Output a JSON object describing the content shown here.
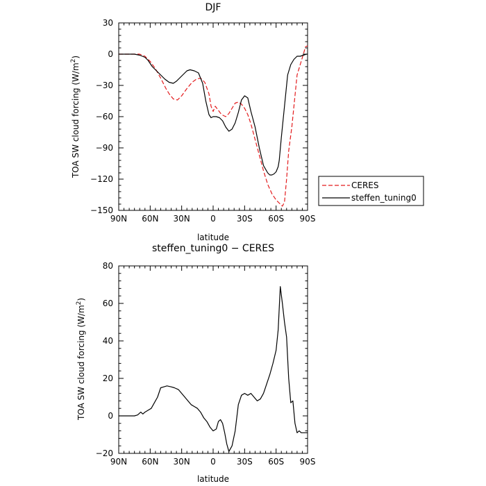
{
  "chart_data": [
    {
      "type": "line",
      "title": "DJF",
      "xlabel": "latitude",
      "ylabel_main": "TOA SW cloud forcing (W/m",
      "ylabel_sup": "2",
      "ylabel_close": ")",
      "xlim": [
        -90,
        90
      ],
      "ylim": [
        -150,
        30
      ],
      "x_ticks": [
        -90,
        -60,
        -30,
        0,
        30,
        60,
        90
      ],
      "x_tick_labels": [
        "90N",
        "60N",
        "30N",
        "0",
        "30S",
        "60S",
        "90S"
      ],
      "y_ticks": [
        -150,
        -120,
        -90,
        -60,
        -30,
        0,
        30
      ],
      "y_tick_labels": [
        "−150",
        "−120",
        "−90",
        "−60",
        "−30",
        "0",
        "30"
      ],
      "legend_position": "right",
      "series": [
        {
          "name": "CERES",
          "color": "#e31a1c",
          "dash": "dashed",
          "x": [
            -90,
            -85,
            -80,
            -75,
            -70,
            -65,
            -60,
            -55,
            -50,
            -45,
            -42,
            -38,
            -34,
            -30,
            -25,
            -20,
            -16,
            -12,
            -8,
            -4,
            -2,
            0,
            2,
            5,
            8,
            12,
            15,
            18,
            21,
            24,
            27,
            30,
            33,
            36,
            40,
            44,
            48,
            52,
            56,
            60,
            63,
            65,
            66,
            68,
            70,
            72,
            75,
            78,
            80,
            83,
            86,
            88,
            90
          ],
          "y": [
            0,
            0,
            0,
            0,
            0,
            -2,
            -7,
            -14,
            -23,
            -33,
            -38,
            -43,
            -44,
            -40,
            -33,
            -27,
            -24,
            -23,
            -27,
            -38,
            -50,
            -55,
            -50,
            -54,
            -58,
            -60,
            -57,
            -52,
            -47,
            -46,
            -48,
            -52,
            -58,
            -67,
            -82,
            -97,
            -112,
            -125,
            -134,
            -140,
            -143,
            -145,
            -146,
            -142,
            -120,
            -93,
            -70,
            -40,
            -20,
            -10,
            0,
            7,
            8
          ]
        },
        {
          "name": "steffen_tuning0",
          "color": "#000000",
          "dash": "solid",
          "x": [
            -90,
            -85,
            -80,
            -75,
            -70,
            -65,
            -62,
            -58,
            -54,
            -50,
            -46,
            -42,
            -38,
            -35,
            -32,
            -28,
            -25,
            -22,
            -18,
            -14,
            -10,
            -7,
            -4,
            -2,
            0,
            3,
            6,
            9,
            12,
            15,
            18,
            21,
            24,
            27,
            30,
            33,
            36,
            40,
            44,
            48,
            52,
            54,
            56,
            58,
            60,
            62,
            63,
            65,
            68,
            71,
            74,
            77,
            80,
            83,
            86,
            89,
            90
          ],
          "y": [
            0,
            0,
            0,
            0,
            -1,
            -3,
            -6,
            -12,
            -16,
            -20,
            -24,
            -27,
            -28,
            -26,
            -23,
            -19,
            -16,
            -15,
            -16,
            -18,
            -28,
            -45,
            -58,
            -61,
            -60,
            -60,
            -61,
            -64,
            -70,
            -74,
            -72,
            -66,
            -56,
            -44,
            -40,
            -42,
            -55,
            -70,
            -90,
            -107,
            -114,
            -116,
            -116,
            -115,
            -113,
            -108,
            -102,
            -80,
            -50,
            -20,
            -10,
            -5,
            -2,
            -2,
            -1,
            0,
            0
          ]
        }
      ]
    },
    {
      "type": "line",
      "title": "steffen_tuning0 − CERES",
      "xlabel": "latitude",
      "ylabel_main": "TOA SW cloud forcing (W/m",
      "ylabel_sup": "2",
      "ylabel_close": ")",
      "xlim": [
        -90,
        90
      ],
      "ylim": [
        -20,
        80
      ],
      "x_ticks": [
        -90,
        -60,
        -30,
        0,
        30,
        60,
        90
      ],
      "x_tick_labels": [
        "90N",
        "60N",
        "30N",
        "0",
        "30S",
        "60S",
        "90S"
      ],
      "y_ticks": [
        -20,
        0,
        20,
        40,
        60,
        80
      ],
      "y_tick_labels": [
        "−20",
        "0",
        "20",
        "40",
        "60",
        "80"
      ],
      "series": [
        {
          "name": "",
          "color": "#000000",
          "dash": "solid",
          "x": [
            -90,
            -85,
            -80,
            -75,
            -72,
            -69,
            -67,
            -65,
            -62,
            -59,
            -56,
            -53,
            -50,
            -47,
            -44,
            -40,
            -37,
            -33,
            -30,
            -27,
            -24,
            -21,
            -18,
            -15,
            -12,
            -9,
            -6,
            -3,
            0,
            3,
            5,
            7,
            9,
            11,
            13,
            15,
            18,
            21,
            24,
            27,
            30,
            33,
            36,
            39,
            42,
            45,
            48,
            51,
            54,
            57,
            60,
            62,
            64,
            66,
            68,
            70,
            72,
            74,
            76,
            78,
            80,
            82,
            84,
            86,
            88,
            90
          ],
          "y": [
            0,
            0,
            0,
            0,
            0.5,
            2,
            1,
            2,
            3,
            4,
            7,
            10,
            15,
            15.5,
            16,
            15.5,
            15,
            14,
            12,
            10,
            8,
            6,
            5,
            4,
            2,
            -1,
            -3,
            -6,
            -8,
            -7,
            -3,
            -2,
            -4,
            -9,
            -15,
            -19,
            -16,
            -8,
            6,
            11,
            12,
            11,
            12,
            10,
            8,
            9,
            12,
            17,
            22,
            28,
            35,
            46,
            69,
            60,
            50,
            42,
            20,
            7,
            8,
            -4,
            -9,
            -8,
            -9,
            -9,
            -9,
            -9
          ]
        }
      ]
    }
  ]
}
